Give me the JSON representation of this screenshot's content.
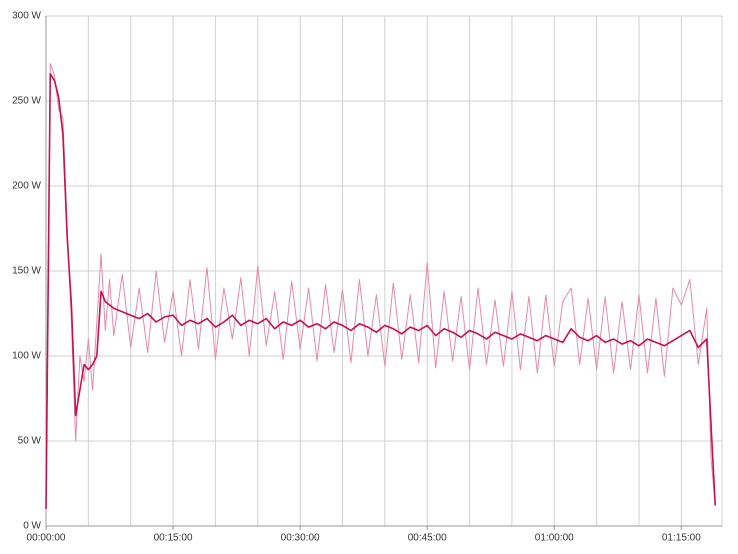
{
  "chart_data": {
    "type": "line",
    "x": [
      0,
      0.5,
      1,
      1.5,
      2,
      2.5,
      3,
      3.5,
      4,
      4.5,
      5,
      5.5,
      6,
      6.5,
      7,
      7.5,
      8,
      9,
      10,
      11,
      12,
      13,
      14,
      15,
      16,
      17,
      18,
      19,
      20,
      21,
      22,
      23,
      24,
      25,
      26,
      27,
      28,
      29,
      30,
      31,
      32,
      33,
      34,
      35,
      36,
      37,
      38,
      39,
      40,
      41,
      42,
      43,
      44,
      45,
      46,
      47,
      48,
      49,
      50,
      51,
      52,
      53,
      54,
      55,
      56,
      57,
      58,
      59,
      60,
      61,
      62,
      63,
      64,
      65,
      66,
      67,
      68,
      69,
      70,
      71,
      72,
      73,
      74,
      75,
      76,
      77,
      78,
      78.5,
      79
    ],
    "series": [
      {
        "color": "#e38aab",
        "values": [
          8,
          272,
          265,
          245,
          240,
          175,
          120,
          50,
          100,
          85,
          110,
          80,
          120,
          160,
          115,
          145,
          112,
          148,
          105,
          140,
          102,
          150,
          108,
          138,
          100,
          145,
          104,
          152,
          98,
          140,
          110,
          146,
          100,
          153,
          106,
          138,
          98,
          144,
          104,
          140,
          97,
          142,
          102,
          139,
          96,
          145,
          100,
          136,
          94,
          143,
          98,
          136,
          96,
          155,
          93,
          138,
          97,
          135,
          92,
          140,
          95,
          133,
          94,
          138,
          92,
          135,
          90,
          136,
          94,
          132,
          140,
          95,
          134,
          92,
          135,
          90,
          132,
          92,
          136,
          90,
          134,
          88,
          140,
          130,
          145,
          95,
          128,
          40,
          12
        ]
      },
      {
        "color": "#c4124c",
        "values": [
          10,
          266,
          262,
          252,
          230,
          170,
          130,
          65,
          80,
          95,
          92,
          95,
          100,
          138,
          132,
          130,
          128,
          126,
          124,
          122,
          125,
          120,
          123,
          124,
          118,
          121,
          119,
          122,
          117,
          120,
          124,
          118,
          121,
          119,
          122,
          116,
          120,
          118,
          121,
          117,
          119,
          116,
          120,
          118,
          115,
          119,
          117,
          114,
          118,
          116,
          113,
          117,
          115,
          118,
          112,
          116,
          114,
          111,
          115,
          113,
          110,
          114,
          112,
          110,
          113,
          111,
          109,
          112,
          110,
          108,
          116,
          111,
          109,
          112,
          108,
          110,
          107,
          109,
          106,
          110,
          108,
          106,
          109,
          112,
          115,
          105,
          110,
          60,
          12
        ]
      }
    ],
    "xlim": [
      0,
      79.8
    ],
    "ylim": [
      0,
      300
    ],
    "xticks": [
      {
        "value": 0,
        "label": "00:00:00"
      },
      {
        "value": 15,
        "label": "00:15:00"
      },
      {
        "value": 30,
        "label": "00:30:00"
      },
      {
        "value": 45,
        "label": "00:45:00"
      },
      {
        "value": 60,
        "label": "01:00:00"
      },
      {
        "value": 75,
        "label": "01:15:00"
      }
    ],
    "x_minor_ticks": [
      5,
      10,
      20,
      25,
      35,
      40,
      50,
      55,
      65,
      70
    ],
    "yticks": [
      {
        "value": 0,
        "label": "0 W"
      },
      {
        "value": 50,
        "label": "50 W"
      },
      {
        "value": 100,
        "label": "100 W"
      },
      {
        "value": 150,
        "label": "150 W"
      },
      {
        "value": 200,
        "label": "200 W"
      },
      {
        "value": 250,
        "label": "250 W"
      },
      {
        "value": 300,
        "label": "300 W"
      }
    ],
    "grid": true
  }
}
